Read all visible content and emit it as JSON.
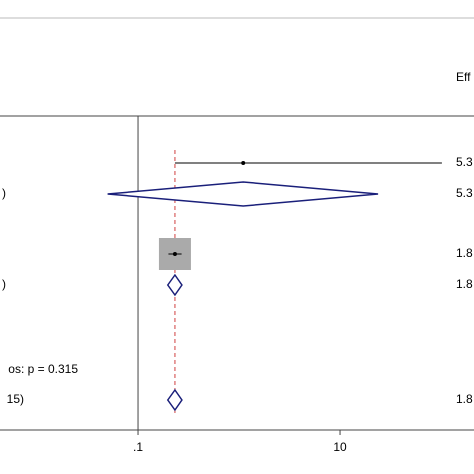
{
  "chart_data": {
    "type": "forest",
    "header": "Eff",
    "xscale": "log",
    "xlim": [
      0.0043,
      212
    ],
    "xticks": [
      {
        "value": 0.1,
        "label": ".1"
      },
      10
    ],
    "ref_line": 0.1,
    "overall_line": 0.232,
    "rows": [
      {
        "kind": "study",
        "left": null,
        "right": "5.3",
        "estimate": 1.1,
        "lower": 0.232,
        "upper": 102
      },
      {
        "kind": "diamond",
        "left": ")",
        "right": "5.3",
        "estimate": 1.1,
        "lower": 0.05,
        "upper": 23.8
      },
      {
        "kind": "study",
        "left": null,
        "right": "1.8",
        "estimate": 0.232,
        "lower": 0.2,
        "upper": 0.27
      },
      {
        "kind": "diamond",
        "left": ")",
        "right": "1.8",
        "estimate": 0.232,
        "lower": 0.197,
        "upper": 0.272
      },
      {
        "kind": "text",
        "left": "os: p = 0.315",
        "right": null
      },
      {
        "kind": "diamond",
        "left": "15)",
        "right": "1.8",
        "estimate": 0.232,
        "lower": 0.197,
        "upper": 0.272
      }
    ],
    "diamond_color": "#1a1f7a",
    "box_color": "#aaaaaa"
  }
}
